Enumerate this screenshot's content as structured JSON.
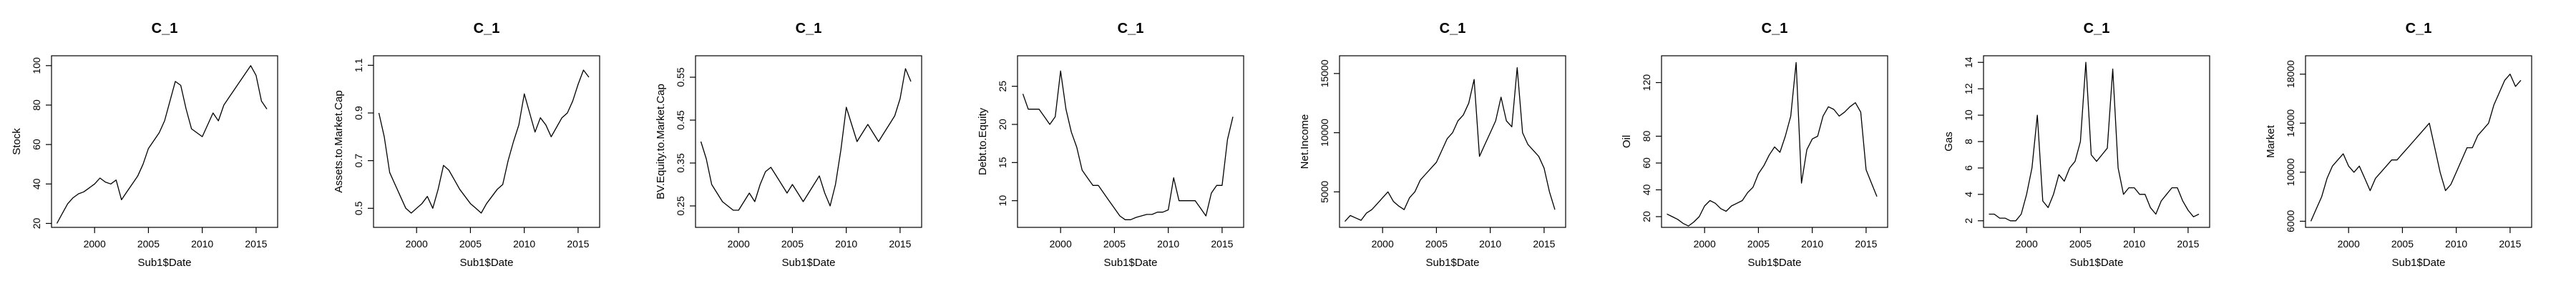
{
  "chart_data": [
    {
      "type": "line",
      "title": "C_1",
      "xlabel": "Sub1$Date",
      "ylabel": "Stock",
      "xlim": [
        1996,
        2017
      ],
      "ylim": [
        18,
        105
      ],
      "x_ticks": [
        "2000",
        "2005",
        "2010",
        "2015"
      ],
      "y_ticks": [
        "20",
        "40",
        "60",
        "80",
        "100"
      ],
      "x": [
        1996.5,
        1997,
        1997.5,
        1998,
        1998.5,
        1999,
        1999.5,
        2000,
        2000.5,
        2001,
        2001.5,
        2002,
        2002.5,
        2003,
        2003.5,
        2004,
        2004.5,
        2005,
        2005.5,
        2006,
        2006.5,
        2007,
        2007.5,
        2008,
        2008.5,
        2009,
        2009.5,
        2010,
        2010.5,
        2011,
        2011.5,
        2012,
        2012.5,
        2013,
        2013.5,
        2014,
        2014.5,
        2015,
        2015.5,
        2016
      ],
      "y": [
        20,
        25,
        30,
        33,
        35,
        36,
        38,
        40,
        43,
        41,
        40,
        42,
        32,
        36,
        40,
        44,
        50,
        58,
        62,
        66,
        72,
        82,
        92,
        90,
        78,
        68,
        66,
        64,
        70,
        76,
        72,
        80,
        84,
        88,
        92,
        96,
        100,
        95,
        82,
        78
      ]
    },
    {
      "type": "line",
      "title": "C_1",
      "xlabel": "Sub1$Date",
      "ylabel": "Assets.to.Market.Cap",
      "xlim": [
        1996,
        2017
      ],
      "ylim": [
        0.42,
        1.14
      ],
      "x_ticks": [
        "2000",
        "2005",
        "2010",
        "2015"
      ],
      "y_ticks": [
        "0.5",
        "0.7",
        "0.9",
        "1.1"
      ],
      "x": [
        1996.5,
        1997,
        1997.5,
        1998,
        1998.5,
        1999,
        1999.5,
        2000,
        2000.5,
        2001,
        2001.5,
        2002,
        2002.5,
        2003,
        2003.5,
        2004,
        2004.5,
        2005,
        2005.5,
        2006,
        2006.5,
        2007,
        2007.5,
        2008,
        2008.5,
        2009,
        2009.5,
        2010,
        2010.5,
        2011,
        2011.5,
        2012,
        2012.5,
        2013,
        2013.5,
        2014,
        2014.5,
        2015,
        2015.5,
        2016
      ],
      "y": [
        0.9,
        0.8,
        0.65,
        0.6,
        0.55,
        0.5,
        0.48,
        0.5,
        0.52,
        0.55,
        0.5,
        0.58,
        0.68,
        0.66,
        0.62,
        0.58,
        0.55,
        0.52,
        0.5,
        0.48,
        0.52,
        0.55,
        0.58,
        0.6,
        0.7,
        0.78,
        0.85,
        0.98,
        0.9,
        0.82,
        0.88,
        0.85,
        0.8,
        0.84,
        0.88,
        0.9,
        0.95,
        1.02,
        1.08,
        1.05
      ]
    },
    {
      "type": "line",
      "title": "C_1",
      "xlabel": "Sub1$Date",
      "ylabel": "BV.Equity.to.Market.Cap",
      "xlim": [
        1996,
        2017
      ],
      "ylim": [
        0.2,
        0.6
      ],
      "x_ticks": [
        "2000",
        "2005",
        "2010",
        "2015"
      ],
      "y_ticks": [
        "0.25",
        "0.35",
        "0.45",
        "0.55"
      ],
      "x": [
        1996.5,
        1997,
        1997.5,
        1998,
        1998.5,
        1999,
        1999.5,
        2000,
        2000.5,
        2001,
        2001.5,
        2002,
        2002.5,
        2003,
        2003.5,
        2004,
        2004.5,
        2005,
        2005.5,
        2006,
        2006.5,
        2007,
        2007.5,
        2008,
        2008.5,
        2009,
        2009.5,
        2010,
        2010.5,
        2011,
        2011.5,
        2012,
        2012.5,
        2013,
        2013.5,
        2014,
        2014.5,
        2015,
        2015.5,
        2016
      ],
      "y": [
        0.4,
        0.36,
        0.3,
        0.28,
        0.26,
        0.25,
        0.24,
        0.24,
        0.26,
        0.28,
        0.26,
        0.3,
        0.33,
        0.34,
        0.32,
        0.3,
        0.28,
        0.3,
        0.28,
        0.26,
        0.28,
        0.3,
        0.32,
        0.28,
        0.25,
        0.3,
        0.38,
        0.48,
        0.44,
        0.4,
        0.42,
        0.44,
        0.42,
        0.4,
        0.42,
        0.44,
        0.46,
        0.5,
        0.57,
        0.54
      ]
    },
    {
      "type": "line",
      "title": "C_1",
      "xlabel": "Sub1$Date",
      "ylabel": "Debt.to.Equity",
      "xlim": [
        1996,
        2017
      ],
      "ylim": [
        6.5,
        29
      ],
      "x_ticks": [
        "2000",
        "2005",
        "2010",
        "2015"
      ],
      "y_ticks": [
        "10",
        "15",
        "20",
        "25"
      ],
      "x": [
        1996.5,
        1997,
        1997.5,
        1998,
        1998.5,
        1999,
        1999.5,
        2000,
        2000.5,
        2001,
        2001.5,
        2002,
        2002.5,
        2003,
        2003.5,
        2004,
        2004.5,
        2005,
        2005.5,
        2006,
        2006.5,
        2007,
        2007.5,
        2008,
        2008.5,
        2009,
        2009.5,
        2010,
        2010.5,
        2011,
        2011.5,
        2012,
        2012.5,
        2013,
        2013.5,
        2014,
        2014.5,
        2015,
        2015.5,
        2016
      ],
      "y": [
        24,
        22,
        22,
        22,
        21,
        20,
        21,
        27,
        22,
        19,
        17,
        14,
        13,
        12,
        12,
        11,
        10,
        9,
        8,
        7.5,
        7.5,
        7.8,
        8,
        8.2,
        8.2,
        8.5,
        8.5,
        8.8,
        13,
        10,
        10,
        10,
        10,
        9,
        8,
        11,
        12,
        12,
        18,
        21
      ]
    },
    {
      "type": "line",
      "title": "C_1",
      "xlabel": "Sub1$Date",
      "ylabel": "Net.Income",
      "xlim": [
        1996,
        2017
      ],
      "ylim": [
        2000,
        16500
      ],
      "x_ticks": [
        "2000",
        "2005",
        "2010",
        "2015"
      ],
      "y_ticks": [
        "5000",
        "10000",
        "15000"
      ],
      "x": [
        1996.5,
        1997,
        1997.5,
        1998,
        1998.5,
        1999,
        1999.5,
        2000,
        2000.5,
        2001,
        2001.5,
        2002,
        2002.5,
        2003,
        2003.5,
        2004,
        2004.5,
        2005,
        2005.5,
        2006,
        2006.5,
        2007,
        2007.5,
        2008,
        2008.5,
        2009,
        2009.5,
        2010,
        2010.5,
        2011,
        2011.5,
        2012,
        2012.5,
        2013,
        2013.5,
        2014,
        2014.5,
        2015,
        2015.5,
        2016
      ],
      "y": [
        2500,
        3000,
        2800,
        2600,
        3200,
        3500,
        4000,
        4500,
        5000,
        4200,
        3800,
        3500,
        4500,
        5000,
        6000,
        6500,
        7000,
        7500,
        8500,
        9500,
        10000,
        11000,
        11500,
        12500,
        14500,
        8000,
        9000,
        10000,
        11000,
        13000,
        11000,
        10500,
        15500,
        10000,
        9000,
        8500,
        8000,
        7000,
        5000,
        3500
      ]
    },
    {
      "type": "line",
      "title": "C_1",
      "xlabel": "Sub1$Date",
      "ylabel": "Oil",
      "xlim": [
        1996,
        2017
      ],
      "ylim": [
        12,
        140
      ],
      "x_ticks": [
        "2000",
        "2005",
        "2010",
        "2015"
      ],
      "y_ticks": [
        "20",
        "40",
        "60",
        "80",
        "120"
      ],
      "x": [
        1996.5,
        1997,
        1997.5,
        1998,
        1998.5,
        1999,
        1999.5,
        2000,
        2000.5,
        2001,
        2001.5,
        2002,
        2002.5,
        2003,
        2003.5,
        2004,
        2004.5,
        2005,
        2005.5,
        2006,
        2006.5,
        2007,
        2007.5,
        2008,
        2008.5,
        2009,
        2009.5,
        2010,
        2010.5,
        2011,
        2011.5,
        2012,
        2012.5,
        2013,
        2013.5,
        2014,
        2014.5,
        2015,
        2015.5,
        2016
      ],
      "y": [
        22,
        20,
        18,
        15,
        13,
        16,
        20,
        28,
        32,
        30,
        26,
        24,
        28,
        30,
        32,
        38,
        42,
        52,
        58,
        66,
        72,
        68,
        80,
        95,
        135,
        45,
        70,
        78,
        80,
        95,
        102,
        100,
        95,
        98,
        102,
        105,
        98,
        55,
        45,
        35
      ]
    },
    {
      "type": "line",
      "title": "C_1",
      "xlabel": "Sub1$Date",
      "ylabel": "Gas",
      "xlim": [
        1996,
        2017
      ],
      "ylim": [
        1.5,
        14.5
      ],
      "x_ticks": [
        "2000",
        "2005",
        "2010",
        "2015"
      ],
      "y_ticks": [
        "2",
        "4",
        "6",
        "8",
        "10",
        "12",
        "14"
      ],
      "x": [
        1996.5,
        1997,
        1997.5,
        1998,
        1998.5,
        1999,
        1999.5,
        2000,
        2000.5,
        2001,
        2001.5,
        2002,
        2002.5,
        2003,
        2003.5,
        2004,
        2004.5,
        2005,
        2005.5,
        2006,
        2006.5,
        2007,
        2007.5,
        2008,
        2008.5,
        2009,
        2009.5,
        2010,
        2010.5,
        2011,
        2011.5,
        2012,
        2012.5,
        2013,
        2013.5,
        2014,
        2014.5,
        2015,
        2015.5,
        2016
      ],
      "y": [
        2.5,
        2.5,
        2.2,
        2.2,
        2,
        2,
        2.5,
        4,
        6,
        10,
        3.5,
        3,
        4,
        5.5,
        5,
        6,
        6.5,
        8,
        14,
        7,
        6.5,
        7,
        7.5,
        13.5,
        6,
        4,
        4.5,
        4.5,
        4,
        4,
        3,
        2.5,
        3.5,
        4,
        4.5,
        4.5,
        3.5,
        2.8,
        2.3,
        2.5
      ]
    },
    {
      "type": "line",
      "title": "C_1",
      "xlabel": "Sub1$Date",
      "ylabel": "Market",
      "xlim": [
        1996,
        2017
      ],
      "ylim": [
        5500,
        19500
      ],
      "x_ticks": [
        "2000",
        "2005",
        "2010",
        "2015"
      ],
      "y_ticks": [
        "6000",
        "10000",
        "14000",
        "18000"
      ],
      "x": [
        1996.5,
        1997,
        1997.5,
        1998,
        1998.5,
        1999,
        1999.5,
        2000,
        2000.5,
        2001,
        2001.5,
        2002,
        2002.5,
        2003,
        2003.5,
        2004,
        2004.5,
        2005,
        2005.5,
        2006,
        2006.5,
        2007,
        2007.5,
        2008,
        2008.5,
        2009,
        2009.5,
        2010,
        2010.5,
        2011,
        2011.5,
        2012,
        2012.5,
        2013,
        2013.5,
        2014,
        2014.5,
        2015,
        2015.5,
        2016
      ],
      "y": [
        6000,
        7000,
        8000,
        9500,
        10500,
        11000,
        11500,
        10500,
        10000,
        10500,
        9500,
        8500,
        9500,
        10000,
        10500,
        11000,
        11000,
        11500,
        12000,
        12500,
        13000,
        13500,
        14000,
        12000,
        10000,
        8500,
        9000,
        10000,
        11000,
        12000,
        12000,
        13000,
        13500,
        14000,
        15500,
        16500,
        17500,
        18000,
        17000,
        17500
      ]
    }
  ]
}
